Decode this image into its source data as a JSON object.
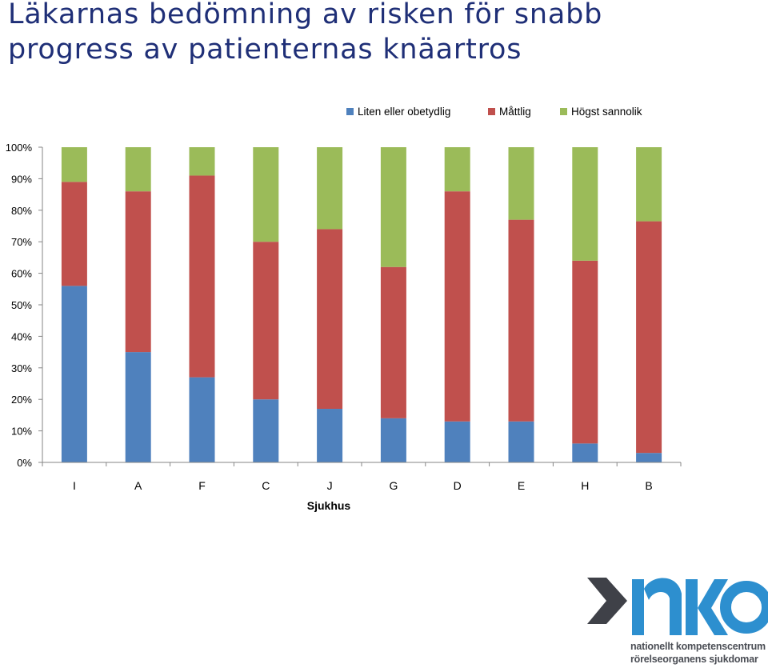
{
  "slide": {
    "title_line1": "Läkarnas bedömning av risken för snabb",
    "title_line2": "progress av patienternas knäartros"
  },
  "chart_data": {
    "type": "bar",
    "stacked": true,
    "percent_stacked": true,
    "title": "",
    "xlabel": "Sjukhus",
    "ylabel": "",
    "ylim": [
      0,
      100
    ],
    "yticks": [
      "0%",
      "10%",
      "20%",
      "30%",
      "40%",
      "50%",
      "60%",
      "70%",
      "80%",
      "90%",
      "100%"
    ],
    "grid": false,
    "legend_position": "top-right",
    "categories": [
      "I",
      "A",
      "F",
      "C",
      "J",
      "G",
      "D",
      "E",
      "H",
      "B"
    ],
    "series": [
      {
        "name": "Liten eller obetydlig",
        "color": "#4f81bd",
        "values": [
          56,
          35,
          27,
          20,
          17,
          14,
          13,
          13,
          6,
          3
        ]
      },
      {
        "name": "Måttlig",
        "color": "#c0504d",
        "values": [
          33,
          51,
          64,
          50,
          57,
          48,
          73,
          64,
          58,
          73.5
        ]
      },
      {
        "name": "Högst sannolik",
        "color": "#9bbb59",
        "values": [
          11,
          14,
          9,
          30,
          26,
          38,
          14,
          23,
          36,
          23.5
        ]
      }
    ]
  },
  "logo": {
    "line1": "nationellt kompetenscentrum",
    "line2": "rörelseorganens sjukdomar",
    "colors": {
      "arrow": "#3f4148",
      "letters": "#2d8fcf"
    }
  }
}
